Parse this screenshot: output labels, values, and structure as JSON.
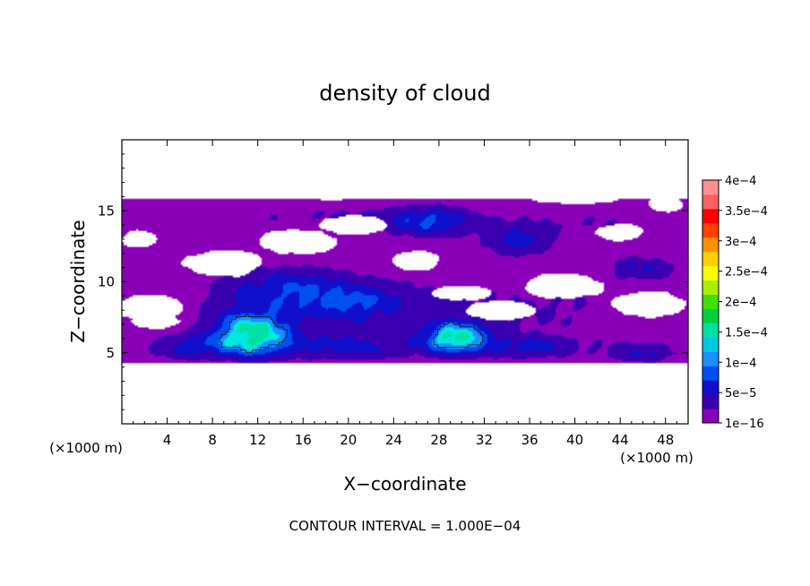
{
  "chart_data": {
    "type": "heatmap",
    "title": "density of cloud",
    "xlabel": "X−coordinate",
    "ylabel": "Z−coordinate",
    "x_unit": "(×1000 m)",
    "z_unit": "(×1000 m)",
    "footer": "CONTOUR INTERVAL = 1.000E−04",
    "xlim": [
      0,
      50
    ],
    "ylim": [
      0,
      20
    ],
    "x_ticks": [
      4,
      8,
      12,
      16,
      20,
      24,
      28,
      32,
      36,
      40,
      44,
      48
    ],
    "x_tick_labels": [
      "4",
      "8",
      "12",
      "16",
      "20",
      "24",
      "28",
      "32",
      "36",
      "40",
      "44",
      "48"
    ],
    "y_ticks": [
      5,
      10,
      15
    ],
    "y_tick_labels": [
      "5",
      "10",
      "15"
    ],
    "grid": false,
    "colorbar": {
      "labels": [
        "1e−16",
        "5e−5",
        "1e−4",
        "1.5e−4",
        "2e−4",
        "2.5e−4",
        "3e−4",
        "3.5e−4",
        "4e−4"
      ],
      "colors": [
        "#8a00b8",
        "#3a00b0",
        "#1010cc",
        "#0050f0",
        "#1a90ff",
        "#00c8e0",
        "#00e0a0",
        "#00d040",
        "#40e000",
        "#a8f000",
        "#ffff00",
        "#ffd000",
        "#ff9000",
        "#ff4000",
        "#ff0000",
        "#ff6060",
        "#ff9090"
      ]
    },
    "levels": [
      1e-16,
      2.5e-05,
      5e-05,
      7.5e-05,
      0.0001,
      0.000125,
      0.00015
    ],
    "contour_lines": [
      0.0001
    ],
    "cloud_features": [
      {
        "x": 5.0,
        "z": 14.8,
        "sx": 8.0,
        "sz": 1.1,
        "v": 2e-05
      },
      {
        "x": 18.0,
        "z": 14.5,
        "sx": 8.0,
        "sz": 1.2,
        "v": 2e-05
      },
      {
        "x": 30.0,
        "z": 14.2,
        "sx": 10.0,
        "sz": 1.4,
        "v": 2.2e-05
      },
      {
        "x": 44.0,
        "z": 14.2,
        "sx": 7.0,
        "sz": 1.3,
        "v": 2e-05
      },
      {
        "x": 27.0,
        "z": 14.3,
        "sx": 3.5,
        "sz": 1.0,
        "v": 5.5e-05
      },
      {
        "x": 35.0,
        "z": 12.8,
        "sx": 3.0,
        "sz": 1.1,
        "v": 5e-05
      },
      {
        "x": 46.0,
        "z": 11.0,
        "sx": 3.5,
        "sz": 0.9,
        "v": 4.5e-05
      },
      {
        "x": 15.0,
        "z": 9.5,
        "sx": 5.5,
        "sz": 1.5,
        "v": 5e-05
      },
      {
        "x": 21.0,
        "z": 8.5,
        "sx": 4.0,
        "sz": 1.3,
        "v": 4.2e-05
      },
      {
        "x": 12.0,
        "z": 8.0,
        "sx": 9.0,
        "sz": 3.0,
        "v": 2.5e-05
      },
      {
        "x": 25.0,
        "z": 8.2,
        "sx": 12.0,
        "sz": 2.5,
        "v": 2.3e-05
      },
      {
        "x": 40.0,
        "z": 8.0,
        "sx": 10.0,
        "sz": 2.5,
        "v": 2e-05
      },
      {
        "x": 11.5,
        "z": 6.3,
        "sx": 3.0,
        "sz": 1.3,
        "v": 0.000155
      },
      {
        "x": 29.5,
        "z": 6.1,
        "sx": 2.6,
        "sz": 1.0,
        "v": 0.000145
      },
      {
        "x": 6.0,
        "z": 5.4,
        "sx": 3.5,
        "sz": 0.9,
        "v": 4e-05
      },
      {
        "x": 20.0,
        "z": 5.5,
        "sx": 5.0,
        "sz": 1.0,
        "v": 3e-05
      },
      {
        "x": 36.0,
        "z": 5.4,
        "sx": 3.5,
        "sz": 0.8,
        "v": 3.5e-05
      },
      {
        "x": 46.0,
        "z": 4.9,
        "sx": 3.0,
        "sz": 0.7,
        "v": 4e-05
      },
      {
        "x": 25.0,
        "z": 5.3,
        "sx": 26.0,
        "sz": 0.9,
        "v": 2e-05
      }
    ],
    "clear_regions": [
      {
        "x": 2.5,
        "z": 8.2,
        "rx": 3.0,
        "rz": 0.9
      },
      {
        "x": 3.0,
        "z": 7.2,
        "rx": 2.2,
        "rz": 0.5
      },
      {
        "x": 9.0,
        "z": 11.3,
        "rx": 3.5,
        "rz": 0.9
      },
      {
        "x": 15.5,
        "z": 12.8,
        "rx": 3.5,
        "rz": 0.9
      },
      {
        "x": 20.5,
        "z": 14.0,
        "rx": 2.8,
        "rz": 0.7
      },
      {
        "x": 18.0,
        "z": 16.3,
        "rx": 6.0,
        "rz": 0.5
      },
      {
        "x": 26.0,
        "z": 11.5,
        "rx": 2.0,
        "rz": 0.7
      },
      {
        "x": 30.0,
        "z": 9.2,
        "rx": 2.8,
        "rz": 0.5
      },
      {
        "x": 33.5,
        "z": 8.0,
        "rx": 3.0,
        "rz": 0.7
      },
      {
        "x": 39.0,
        "z": 9.7,
        "rx": 3.5,
        "rz": 0.9
      },
      {
        "x": 44.0,
        "z": 13.5,
        "rx": 2.0,
        "rz": 0.6
      },
      {
        "x": 46.5,
        "z": 8.4,
        "rx": 3.2,
        "rz": 0.9
      },
      {
        "x": 48.0,
        "z": 15.5,
        "rx": 1.5,
        "rz": 0.6
      },
      {
        "x": 40.0,
        "z": 15.9,
        "rx": 4.0,
        "rz": 0.4
      },
      {
        "x": 1.5,
        "z": 13.0,
        "rx": 1.5,
        "rz": 0.6
      }
    ],
    "cloud_base_z": 4.3,
    "cloud_top_z": 15.8
  }
}
